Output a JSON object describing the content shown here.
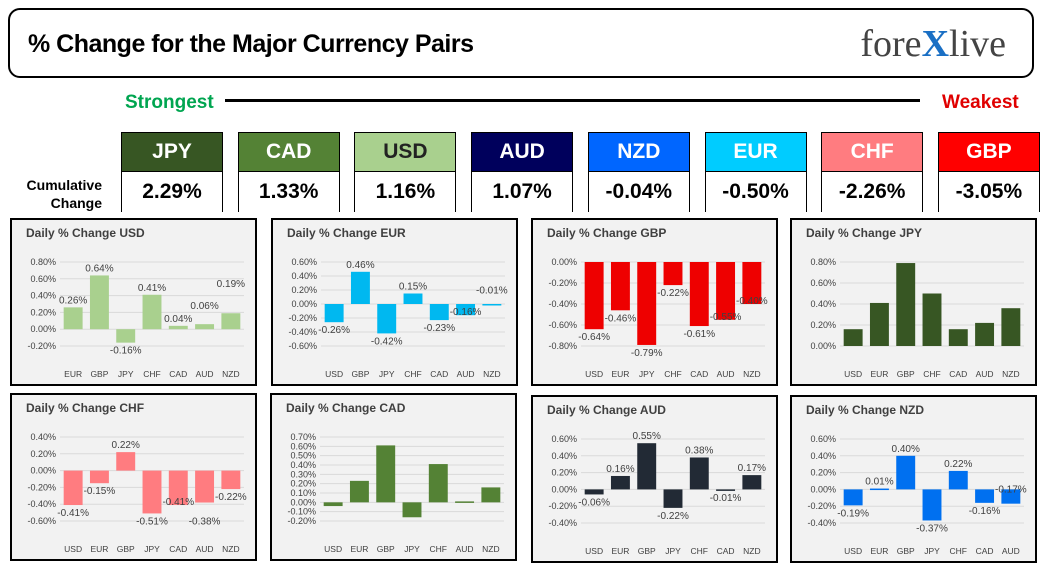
{
  "header": {
    "title": "% Change for the Major Currency Pairs",
    "logo": "forexlive"
  },
  "scale": {
    "strongest": "Strongest",
    "weakest": "Weakest"
  },
  "cumulative_label": [
    "Cumulative",
    "Change"
  ],
  "cumulative": [
    {
      "name": "JPY",
      "value": "2.29%",
      "color": "#375623"
    },
    {
      "name": "CAD",
      "value": "1.33%",
      "color": "#548235"
    },
    {
      "name": "USD",
      "value": "1.16%",
      "color": "#a9d08e"
    },
    {
      "name": "AUD",
      "value": "1.07%",
      "color": "#00005c"
    },
    {
      "name": "NZD",
      "value": "-0.04%",
      "color": "#0066ff"
    },
    {
      "name": "EUR",
      "value": "-0.50%",
      "color": "#00ccff"
    },
    {
      "name": "CHF",
      "value": "-2.26%",
      "color": "#ff7c80"
    },
    {
      "name": "GBP",
      "value": "-3.05%",
      "color": "#ff0000"
    }
  ],
  "chart_data": [
    {
      "type": "bar",
      "title": "Daily % Change USD",
      "color": "#a9d08e",
      "labels": true,
      "categories": [
        "EUR",
        "GBP",
        "JPY",
        "CHF",
        "CAD",
        "AUD",
        "NZD"
      ],
      "values": [
        0.26,
        0.64,
        -0.16,
        0.41,
        0.04,
        0.06,
        0.19
      ],
      "ylim": [
        -0.2,
        0.8
      ],
      "ystep": 0.2,
      "decimals": 2
    },
    {
      "type": "bar",
      "title": "Daily % Change EUR",
      "color": "#00b8f0",
      "labels": true,
      "categories": [
        "USD",
        "GBP",
        "JPY",
        "CHF",
        "CAD",
        "AUD",
        "NZD"
      ],
      "values": [
        -0.26,
        0.46,
        -0.42,
        0.15,
        -0.23,
        -0.16,
        -0.01
      ],
      "ylim": [
        -0.6,
        0.6
      ],
      "ystep": 0.2,
      "decimals": 2
    },
    {
      "type": "bar",
      "title": "Daily % Change GBP",
      "color": "#ee0000",
      "labels": true,
      "categories": [
        "USD",
        "EUR",
        "JPY",
        "CHF",
        "CAD",
        "AUD",
        "NZD"
      ],
      "values": [
        -0.64,
        -0.46,
        -0.79,
        -0.22,
        -0.61,
        -0.55,
        -0.4
      ],
      "ylim": [
        -0.8,
        0
      ],
      "ystep": 0.2,
      "decimals": 2
    },
    {
      "type": "bar",
      "title": "Daily % Change JPY",
      "color": "#375623",
      "labels": false,
      "categories": [
        "USD",
        "EUR",
        "GBP",
        "CHF",
        "CAD",
        "AUD",
        "NZD"
      ],
      "values": [
        0.16,
        0.41,
        0.79,
        0.5,
        0.16,
        0.22,
        0.36
      ],
      "ylim": [
        0,
        0.8
      ],
      "ystep": 0.2,
      "decimals": 2
    },
    {
      "type": "bar",
      "title": "Daily % Change CHF",
      "color": "#ff7c80",
      "labels": true,
      "categories": [
        "USD",
        "EUR",
        "GBP",
        "JPY",
        "CAD",
        "AUD",
        "NZD"
      ],
      "values": [
        -0.41,
        -0.15,
        0.22,
        -0.51,
        -0.41,
        -0.38,
        -0.22
      ],
      "ylim": [
        -0.6,
        0.4
      ],
      "ystep": 0.2,
      "decimals": 2
    },
    {
      "type": "bar",
      "title": "Daily % Change CAD",
      "color": "#548235",
      "labels": false,
      "categories": [
        "USD",
        "EUR",
        "GBP",
        "JPY",
        "CHF",
        "AUD",
        "NZD"
      ],
      "values": [
        -0.04,
        0.23,
        0.61,
        -0.16,
        0.41,
        0.01,
        0.16
      ],
      "ylim": [
        -0.2,
        0.7
      ],
      "ystep": 0.1,
      "decimals": 2
    },
    {
      "type": "bar",
      "title": "Daily % Change AUD",
      "color": "#222a35",
      "labels": true,
      "categories": [
        "USD",
        "EUR",
        "GBP",
        "JPY",
        "CHF",
        "CAD",
        "NZD"
      ],
      "values": [
        -0.06,
        0.16,
        0.55,
        -0.22,
        0.38,
        -0.01,
        0.17
      ],
      "ylim": [
        -0.4,
        0.6
      ],
      "ystep": 0.2,
      "decimals": 2
    },
    {
      "type": "bar",
      "title": "Daily % Change NZD",
      "color": "#0070f0",
      "labels": true,
      "categories": [
        "USD",
        "EUR",
        "GBP",
        "JPY",
        "CHF",
        "CAD",
        "AUD"
      ],
      "values": [
        -0.19,
        0.01,
        0.4,
        -0.37,
        0.22,
        -0.16,
        -0.17
      ],
      "ylim": [
        -0.4,
        0.6
      ],
      "ystep": 0.2,
      "decimals": 2
    }
  ]
}
